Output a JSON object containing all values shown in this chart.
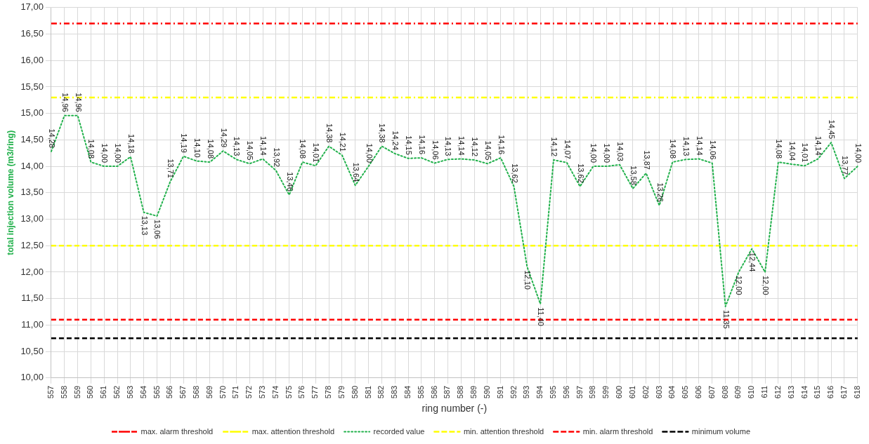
{
  "chart_data": {
    "type": "line",
    "xlabel": "ring number (-)",
    "ylabel": "total injection volume (m3/ring)",
    "categories": [
      "557",
      "558",
      "559",
      "560",
      "561",
      "562",
      "563",
      "564",
      "565",
      "566",
      "567",
      "568",
      "569",
      "570",
      "571",
      "572",
      "573",
      "574",
      "575",
      "576",
      "577",
      "578",
      "579",
      "580",
      "581",
      "582",
      "583",
      "584",
      "585",
      "586",
      "587",
      "588",
      "589",
      "590",
      "591",
      "592",
      "593",
      "594",
      "595",
      "596",
      "597",
      "598",
      "599",
      "600",
      "601",
      "602",
      "603",
      "604",
      "605",
      "606",
      "607",
      "608",
      "609",
      "610",
      "611",
      "612",
      "613",
      "614",
      "615",
      "616",
      "617",
      "618"
    ],
    "ylim": [
      10,
      17
    ],
    "yticks": [
      {
        "value": 10,
        "label": "10,00"
      },
      {
        "value": 10.5,
        "label": "10,50"
      },
      {
        "value": 11,
        "label": "11,00"
      },
      {
        "value": 11.5,
        "label": "11,50"
      },
      {
        "value": 12,
        "label": "12,00"
      },
      {
        "value": 12.5,
        "label": "12,50"
      },
      {
        "value": 13,
        "label": "13,00"
      },
      {
        "value": 13.5,
        "label": "13,50"
      },
      {
        "value": 14,
        "label": "14,00"
      },
      {
        "value": 14.5,
        "label": "14,50"
      },
      {
        "value": 15,
        "label": "15,00"
      },
      {
        "value": 15.5,
        "label": "15,50"
      },
      {
        "value": 16,
        "label": "16,00"
      },
      {
        "value": 16.5,
        "label": "16,50"
      },
      {
        "value": 17,
        "label": "17,00"
      }
    ],
    "grid": true,
    "legend": "bottom",
    "marker": "none",
    "series": [
      {
        "name": "max. alarm threshold",
        "color": "#ff0000",
        "line_style": "dashdot",
        "values": [
          16.7,
          16.7,
          16.7,
          16.7,
          16.7,
          16.7,
          16.7,
          16.7,
          16.7,
          16.7,
          16.7,
          16.7,
          16.7,
          16.7,
          16.7,
          16.7,
          16.7,
          16.7,
          16.7,
          16.7,
          16.7,
          16.7,
          16.7,
          16.7,
          16.7,
          16.7,
          16.7,
          16.7,
          16.7,
          16.7,
          16.7,
          16.7,
          16.7,
          16.7,
          16.7,
          16.7,
          16.7,
          16.7,
          16.7,
          16.7,
          16.7,
          16.7,
          16.7,
          16.7,
          16.7,
          16.7,
          16.7,
          16.7,
          16.7,
          16.7,
          16.7,
          16.7,
          16.7,
          16.7,
          16.7,
          16.7,
          16.7,
          16.7,
          16.7,
          16.7,
          16.7,
          16.7
        ]
      },
      {
        "name": "max. attention threshold",
        "color": "#ffff00",
        "line_style": "dashdot",
        "values": [
          15.3,
          15.3,
          15.3,
          15.3,
          15.3,
          15.3,
          15.3,
          15.3,
          15.3,
          15.3,
          15.3,
          15.3,
          15.3,
          15.3,
          15.3,
          15.3,
          15.3,
          15.3,
          15.3,
          15.3,
          15.3,
          15.3,
          15.3,
          15.3,
          15.3,
          15.3,
          15.3,
          15.3,
          15.3,
          15.3,
          15.3,
          15.3,
          15.3,
          15.3,
          15.3,
          15.3,
          15.3,
          15.3,
          15.3,
          15.3,
          15.3,
          15.3,
          15.3,
          15.3,
          15.3,
          15.3,
          15.3,
          15.3,
          15.3,
          15.3,
          15.3,
          15.3,
          15.3,
          15.3,
          15.3,
          15.3,
          15.3,
          15.3,
          15.3,
          15.3,
          15.3,
          15.3
        ]
      },
      {
        "name": "recorded value",
        "color": "#22b14c",
        "line_style": "dotted",
        "values": [
          14.28,
          14.96,
          14.96,
          14.08,
          14.0,
          14.0,
          14.18,
          13.13,
          13.06,
          13.71,
          14.19,
          14.1,
          14.08,
          14.29,
          14.13,
          14.05,
          14.14,
          13.92,
          13.46,
          14.08,
          14.01,
          14.38,
          14.21,
          13.64,
          14.0,
          14.38,
          14.24,
          14.15,
          14.16,
          14.06,
          14.13,
          14.14,
          14.12,
          14.05,
          14.16,
          13.62,
          12.1,
          11.4,
          14.12,
          14.07,
          13.62,
          14.0,
          14.0,
          14.03,
          13.58,
          13.87,
          13.26,
          14.08,
          14.13,
          14.14,
          14.06,
          11.35,
          12.0,
          12.44,
          12.0,
          14.08,
          14.04,
          14.01,
          14.14,
          14.45,
          13.77,
          14.0
        ],
        "value_labels": [
          "14,28",
          "14,96",
          "14,96",
          "14,08",
          "14,00",
          "14,00",
          "14,18",
          "13,13",
          "13,06",
          "13,71",
          "14,19",
          "14,10",
          "14,08",
          "14,29",
          "14,13",
          "14,05",
          "14,14",
          "13,92",
          "13,46",
          "14,08",
          "14,01",
          "14,38",
          "14,21",
          "13,64",
          "14,00",
          "14,38",
          "14,24",
          "14,15",
          "14,16",
          "14,06",
          "14,13",
          "14,14",
          "14,12",
          "14,05",
          "14,16",
          "13,62",
          "12,10",
          "11,40",
          "14,12",
          "14,07",
          "13,62",
          "14,00",
          "14,00",
          "14,03",
          "13,58",
          "13,87",
          "13,26",
          "14,08",
          "14,13",
          "14,14",
          "14,06",
          "11,35",
          "12,00",
          "12,44",
          "12,00",
          "14,08",
          "14,04",
          "14,01",
          "14,14",
          "14,45",
          "13,77",
          "14,00"
        ]
      },
      {
        "name": "min. attention threshold",
        "color": "#ffff00",
        "line_style": "dashed",
        "values": [
          12.5,
          12.5,
          12.5,
          12.5,
          12.5,
          12.5,
          12.5,
          12.5,
          12.5,
          12.5,
          12.5,
          12.5,
          12.5,
          12.5,
          12.5,
          12.5,
          12.5,
          12.5,
          12.5,
          12.5,
          12.5,
          12.5,
          12.5,
          12.5,
          12.5,
          12.5,
          12.5,
          12.5,
          12.5,
          12.5,
          12.5,
          12.5,
          12.5,
          12.5,
          12.5,
          12.5,
          12.5,
          12.5,
          12.5,
          12.5,
          12.5,
          12.5,
          12.5,
          12.5,
          12.5,
          12.5,
          12.5,
          12.5,
          12.5,
          12.5,
          12.5,
          12.5,
          12.5,
          12.5,
          12.5,
          12.5,
          12.5,
          12.5,
          12.5,
          12.5,
          12.5,
          12.5
        ]
      },
      {
        "name": "min. alarm threshold",
        "color": "#ff0000",
        "line_style": "dashed",
        "values": [
          11.1,
          11.1,
          11.1,
          11.1,
          11.1,
          11.1,
          11.1,
          11.1,
          11.1,
          11.1,
          11.1,
          11.1,
          11.1,
          11.1,
          11.1,
          11.1,
          11.1,
          11.1,
          11.1,
          11.1,
          11.1,
          11.1,
          11.1,
          11.1,
          11.1,
          11.1,
          11.1,
          11.1,
          11.1,
          11.1,
          11.1,
          11.1,
          11.1,
          11.1,
          11.1,
          11.1,
          11.1,
          11.1,
          11.1,
          11.1,
          11.1,
          11.1,
          11.1,
          11.1,
          11.1,
          11.1,
          11.1,
          11.1,
          11.1,
          11.1,
          11.1,
          11.1,
          11.1,
          11.1,
          11.1,
          11.1,
          11.1,
          11.1,
          11.1,
          11.1,
          11.1,
          11.1
        ]
      },
      {
        "name": "minimum volume",
        "color": "#000000",
        "line_style": "dashed",
        "values": [
          10.75,
          10.75,
          10.75,
          10.75,
          10.75,
          10.75,
          10.75,
          10.75,
          10.75,
          10.75,
          10.75,
          10.75,
          10.75,
          10.75,
          10.75,
          10.75,
          10.75,
          10.75,
          10.75,
          10.75,
          10.75,
          10.75,
          10.75,
          10.75,
          10.75,
          10.75,
          10.75,
          10.75,
          10.75,
          10.75,
          10.75,
          10.75,
          10.75,
          10.75,
          10.75,
          10.75,
          10.75,
          10.75,
          10.75,
          10.75,
          10.75,
          10.75,
          10.75,
          10.75,
          10.75,
          10.75,
          10.75,
          10.75,
          10.75,
          10.75,
          10.75,
          10.75,
          10.75,
          10.75,
          10.75,
          10.75,
          10.75,
          10.75,
          10.75,
          10.75,
          10.75,
          10.75
        ]
      }
    ]
  }
}
